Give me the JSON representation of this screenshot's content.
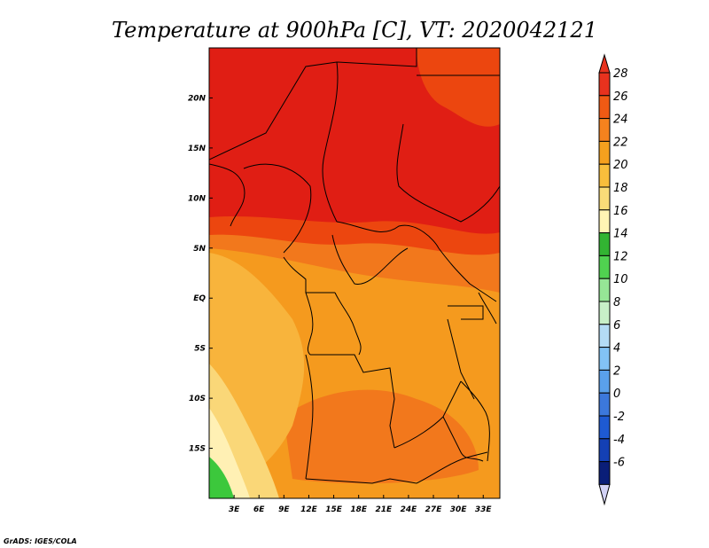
{
  "title": "Temperature at 900hPa [C], VT: 2020042121",
  "credit": "GrADS: IGES/COLA",
  "map": {
    "lon_range": [
      0,
      35
    ],
    "lat_range": [
      -20,
      25
    ],
    "x_ticks": [
      {
        "lon": 3,
        "label": "3E"
      },
      {
        "lon": 6,
        "label": "6E"
      },
      {
        "lon": 9,
        "label": "9E"
      },
      {
        "lon": 12,
        "label": "12E"
      },
      {
        "lon": 15,
        "label": "15E"
      },
      {
        "lon": 18,
        "label": "18E"
      },
      {
        "lon": 21,
        "label": "21E"
      },
      {
        "lon": 24,
        "label": "24E"
      },
      {
        "lon": 27,
        "label": "27E"
      },
      {
        "lon": 30,
        "label": "30E"
      },
      {
        "lon": 33,
        "label": "33E"
      }
    ],
    "y_ticks": [
      {
        "lat": 20,
        "label": "20N"
      },
      {
        "lat": 15,
        "label": "15N"
      },
      {
        "lat": 10,
        "label": "10N"
      },
      {
        "lat": 5,
        "label": "5N"
      },
      {
        "lat": 0,
        "label": "EQ"
      },
      {
        "lat": -5,
        "label": "5S"
      },
      {
        "lat": -10,
        "label": "10S"
      },
      {
        "lat": -15,
        "label": "15S"
      }
    ]
  },
  "colorbar": {
    "levels": [
      {
        "label": "28",
        "color": "#e8321e"
      },
      {
        "label": "26",
        "color": "#f05a14"
      },
      {
        "label": "24",
        "color": "#f5821e"
      },
      {
        "label": "22",
        "color": "#f5a01e"
      },
      {
        "label": "20",
        "color": "#f8be3c"
      },
      {
        "label": "18",
        "color": "#fadc78"
      },
      {
        "label": "16",
        "color": "#fff5b4"
      },
      {
        "label": "14",
        "color": "#32b432"
      },
      {
        "label": "12",
        "color": "#50d250"
      },
      {
        "label": "10",
        "color": "#96e696"
      },
      {
        "label": "8",
        "color": "#c8f0c8"
      },
      {
        "label": "6",
        "color": "#b4dcf5"
      },
      {
        "label": "4",
        "color": "#82c3f5"
      },
      {
        "label": "2",
        "color": "#5aa0eb"
      },
      {
        "label": "0",
        "color": "#3c78dc"
      },
      {
        "label": "-2",
        "color": "#1e5ad2"
      },
      {
        "label": "-4",
        "color": "#1440b4"
      },
      {
        "label": "-6",
        "color": "#0a1e78"
      }
    ],
    "top_arrow_color": "#e8321e",
    "bottom_arrow_color": "#d2d2f5"
  },
  "zone_colors": {
    "hot_top": "#e01e14",
    "hot_band": "#ec460f",
    "warm": "#f2781c",
    "orange": "#f59a1e",
    "mild": "#f8b43c",
    "cool": "#fad778",
    "pale": "#fff0b4",
    "green": "#3cc83c"
  }
}
